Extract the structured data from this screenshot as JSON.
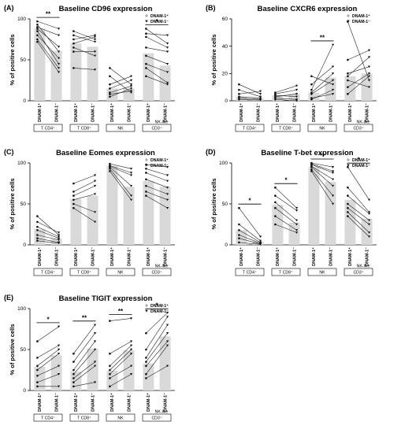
{
  "figure": {
    "y_axis_label": "% of positive  cells",
    "legend": [
      "DNAM-1⁺",
      "DNAM-1⁻"
    ],
    "colors": {
      "bar": "#d9d9d9",
      "line": "#222222",
      "marker_pos": "#aaaaaa",
      "marker_neg": "#111111"
    }
  },
  "chart_data": [
    {
      "type": "bar",
      "panel_label": "(A)",
      "title": "Baseline CD96 expression",
      "ylim": [
        0,
        100
      ],
      "yticks": [
        0,
        50,
        100
      ],
      "categories": [
        "DNAM-1⁺",
        "DNAM-1⁻",
        "DNAM-1⁺",
        "DNAM-1⁻",
        "DNAM-1⁺",
        "DNAM-1⁻",
        "DNAM-1⁺",
        "DNAM-1⁻"
      ],
      "groups": [
        {
          "label": "T CD4⁺",
          "significance": "**",
          "bars": [
            88,
            61
          ],
          "pairs": [
            [
              97,
              88
            ],
            [
              93,
              60
            ],
            [
              90,
              80
            ],
            [
              88,
              66
            ],
            [
              85,
              45
            ],
            [
              80,
              52
            ],
            [
              75,
              40
            ],
            [
              72,
              35
            ]
          ]
        },
        {
          "label": "T CD8⁺",
          "significance": "",
          "bars": [
            70,
            66
          ],
          "pairs": [
            [
              85,
              75
            ],
            [
              80,
              72
            ],
            [
              75,
              80
            ],
            [
              70,
              78
            ],
            [
              65,
              55
            ],
            [
              60,
              60
            ],
            [
              40,
              38
            ]
          ]
        },
        {
          "label": "NK",
          "significance": "",
          "bars": [
            15,
            15
          ],
          "pairs": [
            [
              40,
              20
            ],
            [
              30,
              10
            ],
            [
              20,
              30
            ],
            [
              15,
              25
            ],
            [
              10,
              18
            ],
            [
              8,
              12
            ],
            [
              5,
              15
            ]
          ]
        },
        {
          "label": "NK-like CD3⁺",
          "significance": "*",
          "bars": [
            58,
            43
          ],
          "pairs": [
            [
              88,
              70
            ],
            [
              82,
              80
            ],
            [
              78,
              65
            ],
            [
              65,
              60
            ],
            [
              55,
              45
            ],
            [
              45,
              35
            ],
            [
              40,
              22
            ],
            [
              30,
              20
            ]
          ]
        }
      ]
    },
    {
      "type": "bar",
      "panel_label": "(B)",
      "title": "Baseline CXCR6 expression",
      "ylim": [
        0,
        60
      ],
      "yticks": [
        0,
        20,
        40,
        60
      ],
      "categories": [
        "DNAM-1⁺",
        "DNAM-1⁻",
        "DNAM-1⁺",
        "DNAM-1⁻",
        "DNAM-1⁺",
        "DNAM-1⁻",
        "DNAM-1⁺",
        "DNAM-1⁻"
      ],
      "groups": [
        {
          "label": "T CD4⁺",
          "significance": "",
          "bars": [
            3,
            2
          ],
          "pairs": [
            [
              12,
              5
            ],
            [
              8,
              3
            ],
            [
              5,
              7
            ],
            [
              3,
              2
            ],
            [
              2,
              1
            ],
            [
              1,
              0.5
            ]
          ]
        },
        {
          "label": "T CD8⁺",
          "significance": "",
          "bars": [
            4,
            5
          ],
          "pairs": [
            [
              6,
              11
            ],
            [
              5,
              8
            ],
            [
              4,
              3
            ],
            [
              3,
              5
            ],
            [
              2,
              1
            ],
            [
              1,
              0
            ]
          ]
        },
        {
          "label": "NK",
          "significance": "**",
          "bars": [
            6,
            17
          ],
          "pairs": [
            [
              18,
              12
            ],
            [
              12,
              25
            ],
            [
              8,
              41
            ],
            [
              6,
              20
            ],
            [
              5,
              15
            ],
            [
              2,
              5
            ],
            [
              1,
              8
            ]
          ]
        },
        {
          "label": "NK-like CD3⁺",
          "significance": "",
          "bars": [
            18,
            20
          ],
          "pairs": [
            [
              58,
              15
            ],
            [
              30,
              37
            ],
            [
              20,
              25
            ],
            [
              18,
              32
            ],
            [
              15,
              10
            ],
            [
              10,
              20
            ],
            [
              5,
              18
            ]
          ]
        }
      ]
    },
    {
      "type": "bar",
      "panel_label": "(C)",
      "title": "Baseline Eomes expression",
      "ylim": [
        0,
        100
      ],
      "yticks": [
        0,
        50,
        100
      ],
      "categories": [
        "DNAM-1⁺",
        "DNAM-1⁻",
        "DNAM-1⁺",
        "DNAM-1⁻",
        "DNAM-1⁺",
        "DNAM-1⁻",
        "DNAM-1⁺",
        "DNAM-1⁻"
      ],
      "groups": [
        {
          "label": "T CD4⁺",
          "significance": "",
          "bars": [
            19,
            8
          ],
          "pairs": [
            [
              35,
              12
            ],
            [
              28,
              15
            ],
            [
              22,
              10
            ],
            [
              18,
              8
            ],
            [
              12,
              6
            ],
            [
              8,
              3
            ],
            [
              5,
              2
            ]
          ]
        },
        {
          "label": "T CD8⁺",
          "significance": "",
          "bars": [
            56,
            60
          ],
          "pairs": [
            [
              75,
              85
            ],
            [
              65,
              78
            ],
            [
              60,
              72
            ],
            [
              55,
              62
            ],
            [
              50,
              40
            ],
            [
              45,
              28
            ]
          ]
        },
        {
          "label": "NK",
          "significance": "",
          "bars": [
            96,
            71
          ],
          "pairs": [
            [
              99,
              93
            ],
            [
              97,
              88
            ],
            [
              96,
              85
            ],
            [
              95,
              72
            ],
            [
              93,
              60
            ],
            [
              90,
              55
            ]
          ]
        },
        {
          "label": "NK-like CD3⁺",
          "significance": "",
          "bars": [
            78,
            71
          ],
          "pairs": [
            [
              98,
              95
            ],
            [
              93,
              85
            ],
            [
              88,
              78
            ],
            [
              80,
              70
            ],
            [
              72,
              62
            ],
            [
              65,
              55
            ],
            [
              60,
              45
            ]
          ]
        }
      ]
    },
    {
      "type": "bar",
      "panel_label": "(D)",
      "title": "Baseline T-bet expression",
      "ylim": [
        0,
        100
      ],
      "yticks": [
        0,
        50,
        100
      ],
      "categories": [
        "DNAM-1⁺",
        "DNAM-1⁻",
        "DNAM-1⁺",
        "DNAM-1⁻",
        "DNAM-1⁺",
        "DNAM-1⁻",
        "DNAM-1⁺",
        "DNAM-1⁻"
      ],
      "groups": [
        {
          "label": "T CD4⁺",
          "significance": "*",
          "bars": [
            18,
            4
          ],
          "pairs": [
            [
              45,
              10
            ],
            [
              25,
              5
            ],
            [
              18,
              3
            ],
            [
              12,
              2
            ],
            [
              8,
              1
            ],
            [
              3,
              0.5
            ]
          ]
        },
        {
          "label": "T CD8⁺",
          "significance": "*",
          "bars": [
            49,
            27
          ],
          "pairs": [
            [
              70,
              45
            ],
            [
              60,
              42
            ],
            [
              52,
              30
            ],
            [
              45,
              25
            ],
            [
              35,
              18
            ],
            [
              25,
              15
            ]
          ]
        },
        {
          "label": "NK",
          "significance": "**",
          "bars": [
            95,
            77
          ],
          "pairs": [
            [
              100,
              95
            ],
            [
              99,
              90
            ],
            [
              98,
              88
            ],
            [
              96,
              80
            ],
            [
              95,
              72
            ],
            [
              92,
              60
            ],
            [
              90,
              50
            ]
          ]
        },
        {
          "label": "NK-like CD3⁺",
          "significance": "*",
          "bars": [
            55,
            32
          ],
          "pairs": [
            [
              95,
              55
            ],
            [
              70,
              40
            ],
            [
              60,
              38
            ],
            [
              50,
              30
            ],
            [
              45,
              25
            ],
            [
              40,
              15
            ],
            [
              35,
              10
            ]
          ]
        }
      ]
    },
    {
      "type": "bar",
      "panel_label": "(E)",
      "title": "Baseline TIGIT expression",
      "ylim": [
        0,
        100
      ],
      "yticks": [
        0,
        50,
        100
      ],
      "categories": [
        "DNAM-1⁺",
        "DNAM-1⁻",
        "DNAM-1⁺",
        "DNAM-1⁻",
        "DNAM-1⁺",
        "DNAM-1⁻",
        "DNAM-1⁺",
        "DNAM-1⁻"
      ],
      "groups": [
        {
          "label": "T CD4⁺",
          "significance": "*",
          "bars": [
            29,
            43
          ],
          "pairs": [
            [
              60,
              78
            ],
            [
              40,
              55
            ],
            [
              30,
              50
            ],
            [
              25,
              45
            ],
            [
              18,
              30
            ],
            [
              10,
              20
            ],
            [
              5,
              5
            ]
          ]
        },
        {
          "label": "T CD8⁺",
          "significance": "**",
          "bars": [
            23,
            51
          ],
          "pairs": [
            [
              45,
              80
            ],
            [
              35,
              70
            ],
            [
              25,
              60
            ],
            [
              20,
              50
            ],
            [
              15,
              35
            ],
            [
              10,
              30
            ],
            [
              5,
              10
            ]
          ]
        },
        {
          "label": "NK",
          "significance": "**",
          "bars": [
            24,
            49
          ],
          "pairs": [
            [
              85,
              88
            ],
            [
              45,
              60
            ],
            [
              30,
              55
            ],
            [
              25,
              50
            ],
            [
              20,
              45
            ],
            [
              15,
              30
            ],
            [
              5,
              20
            ]
          ]
        },
        {
          "label": "NK-like CD3⁺",
          "significance": "*",
          "bars": [
            33,
            66
          ],
          "pairs": [
            [
              70,
              95
            ],
            [
              50,
              90
            ],
            [
              40,
              80
            ],
            [
              35,
              70
            ],
            [
              30,
              60
            ],
            [
              20,
              55
            ],
            [
              15,
              30
            ]
          ]
        }
      ]
    }
  ]
}
